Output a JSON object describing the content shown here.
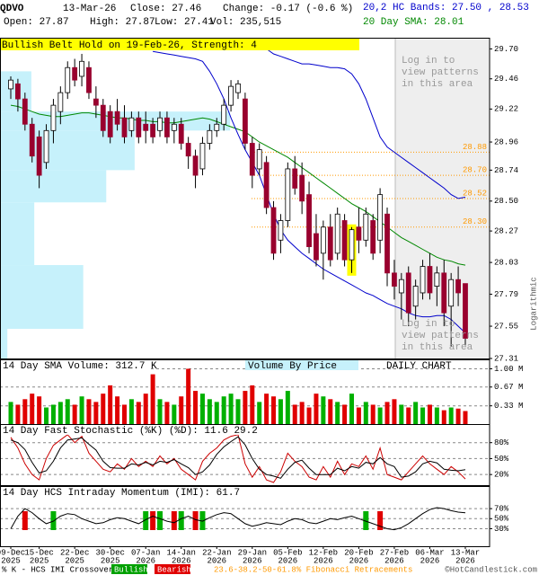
{
  "header": {
    "symbol": "QDVO",
    "date": "13-Mar-26",
    "close": "Close: 27.46",
    "change": "Change: -0.17 (-0.6 %)",
    "open": "Open: 27.87",
    "high": "High: 27.87",
    "low": "Low: 27.41",
    "vol": "Vol: 235,515",
    "bands": "20,2 HC Bands: 27.50 , 28.53",
    "sma": "20 Day SMA: 28.01"
  },
  "notice": [
    "Log in to",
    "view patterns",
    "in this area"
  ],
  "chart_data": [
    {
      "type": "candlestick",
      "annotation": "Bullish Belt Hold on 19-Feb-26, Strength: 4",
      "y_label": "Logarithmic",
      "log_scale": true,
      "ylim": [
        27.31,
        29.79
      ],
      "yticks": [
        {
          "value": 29.7,
          "label": "29.70"
        },
        29.46,
        29.22,
        28.96,
        28.74,
        {
          "value": 28.5,
          "label": "28.50"
        },
        28.27,
        28.03,
        27.79,
        27.55,
        27.31
      ],
      "up_color": "#ffffff",
      "down_color": "#99002e",
      "highlight_color": "#ffff00",
      "highlight_index": 48,
      "ohlc": [
        [
          29.38,
          29.48,
          29.3,
          29.45
        ],
        [
          29.42,
          29.46,
          29.2,
          29.3
        ],
        [
          29.3,
          29.35,
          29.05,
          29.1
        ],
        [
          29.1,
          29.15,
          28.8,
          28.85
        ],
        [
          29.0,
          29.05,
          28.6,
          28.7
        ],
        [
          28.8,
          29.1,
          28.75,
          29.05
        ],
        [
          29.05,
          29.3,
          28.95,
          29.25
        ],
        [
          29.2,
          29.4,
          29.1,
          29.35
        ],
        [
          29.35,
          29.6,
          29.3,
          29.55
        ],
        [
          29.55,
          29.62,
          29.4,
          29.45
        ],
        [
          29.48,
          29.66,
          29.4,
          29.6
        ],
        [
          29.55,
          29.6,
          29.3,
          29.35
        ],
        [
          29.3,
          29.4,
          29.15,
          29.25
        ],
        [
          29.25,
          29.3,
          29.0,
          29.05
        ],
        [
          29.2,
          29.25,
          28.95,
          29.0
        ],
        [
          29.2,
          29.3,
          29.05,
          29.1
        ],
        [
          29.15,
          29.25,
          28.95,
          29.0
        ],
        [
          29.05,
          29.2,
          29.0,
          29.15
        ],
        [
          29.15,
          29.2,
          28.95,
          29.0
        ],
        [
          29.1,
          29.2,
          28.95,
          29.05
        ],
        [
          29.1,
          29.15,
          28.95,
          29.0
        ],
        [
          29.05,
          29.2,
          29.0,
          29.15
        ],
        [
          29.15,
          29.2,
          28.95,
          29.0
        ],
        [
          29.05,
          29.15,
          28.95,
          29.1
        ],
        [
          29.1,
          29.15,
          28.9,
          28.95
        ],
        [
          28.95,
          29.0,
          28.75,
          28.85
        ],
        [
          28.85,
          28.9,
          28.6,
          28.7
        ],
        [
          28.75,
          29.0,
          28.7,
          28.95
        ],
        [
          28.95,
          29.1,
          28.9,
          29.05
        ],
        [
          29.05,
          29.15,
          29.0,
          29.1
        ],
        [
          29.1,
          29.3,
          29.05,
          29.25
        ],
        [
          29.25,
          29.45,
          29.2,
          29.4
        ],
        [
          29.35,
          29.45,
          29.3,
          29.42
        ],
        [
          29.3,
          29.35,
          28.9,
          28.95
        ],
        [
          28.95,
          29.0,
          28.6,
          28.7
        ],
        [
          28.75,
          28.95,
          28.7,
          28.9
        ],
        [
          28.8,
          28.85,
          28.4,
          28.45
        ],
        [
          28.45,
          28.5,
          28.05,
          28.1
        ],
        [
          28.2,
          28.4,
          28.1,
          28.35
        ],
        [
          28.35,
          28.8,
          28.3,
          28.75
        ],
        [
          28.75,
          28.85,
          28.55,
          28.6
        ],
        [
          28.7,
          28.8,
          28.4,
          28.5
        ],
        [
          28.55,
          28.65,
          28.1,
          28.15
        ],
        [
          28.25,
          28.4,
          28.0,
          28.05
        ],
        [
          28.1,
          28.35,
          27.9,
          28.3
        ],
        [
          28.3,
          28.4,
          28.0,
          28.05
        ],
        [
          28.1,
          28.45,
          28.05,
          28.4
        ],
        [
          28.35,
          28.4,
          28.0,
          28.05
        ],
        [
          28.05,
          28.3,
          27.95,
          28.28
        ],
        [
          28.3,
          28.45,
          28.1,
          28.2
        ],
        [
          28.2,
          28.45,
          28.15,
          28.4
        ],
        [
          28.35,
          28.4,
          28.05,
          28.1
        ],
        [
          28.2,
          28.6,
          28.1,
          28.55
        ],
        [
          28.4,
          28.45,
          27.85,
          27.95
        ],
        [
          27.95,
          28.05,
          27.75,
          27.85
        ],
        [
          27.8,
          27.95,
          27.6,
          27.9
        ],
        [
          27.95,
          28.0,
          27.55,
          27.65
        ],
        [
          27.7,
          27.9,
          27.6,
          27.85
        ],
        [
          27.8,
          28.05,
          27.75,
          28.0
        ],
        [
          28.0,
          28.1,
          27.75,
          27.8
        ],
        [
          27.85,
          28.0,
          27.7,
          27.95
        ],
        [
          27.95,
          28.05,
          27.55,
          27.65
        ],
        [
          27.7,
          27.95,
          27.4,
          27.9
        ],
        [
          27.9,
          28.0,
          27.7,
          27.8
        ],
        [
          27.87,
          27.87,
          27.41,
          27.46
        ]
      ],
      "series": [
        {
          "name": "20 Day SMA",
          "color": "#008800",
          "values": [
            29.25,
            29.24,
            29.22,
            29.2,
            29.18,
            29.17,
            29.16,
            29.16,
            29.17,
            29.18,
            29.19,
            29.19,
            29.18,
            29.17,
            29.16,
            29.15,
            29.15,
            29.14,
            29.13,
            29.13,
            29.12,
            29.12,
            29.11,
            29.11,
            29.12,
            29.13,
            29.14,
            29.15,
            29.14,
            29.12,
            29.1,
            29.08,
            29.06,
            29.04,
            29.0,
            28.96,
            28.93,
            28.9,
            28.87,
            28.84,
            28.8,
            28.76,
            28.72,
            28.68,
            28.64,
            28.6,
            28.56,
            28.52,
            28.48,
            28.45,
            28.42,
            28.38,
            28.34,
            28.3,
            28.26,
            28.22,
            28.19,
            28.16,
            28.13,
            28.1,
            28.07,
            28.05,
            28.04,
            28.02,
            28.01
          ]
        },
        {
          "name": "Upper Band",
          "color": "#0000cc",
          "values": [
            null,
            null,
            null,
            null,
            null,
            null,
            null,
            null,
            null,
            null,
            null,
            null,
            null,
            null,
            null,
            null,
            null,
            null,
            null,
            null,
            null,
            null,
            null,
            null,
            null,
            null,
            null,
            null,
            null,
            null,
            null,
            null,
            null,
            null,
            null,
            null,
            29.7,
            29.66,
            29.64,
            29.62,
            29.6,
            29.58,
            29.58,
            29.57,
            29.56,
            29.55,
            29.55,
            29.54,
            29.5,
            29.42,
            29.3,
            29.15,
            29.0,
            28.92,
            28.88,
            28.84,
            28.8,
            28.76,
            28.72,
            28.68,
            28.64,
            28.6,
            28.55,
            28.52,
            28.53
          ]
        },
        {
          "name": "Lower Band",
          "color": "#0000cc",
          "values": [
            null,
            null,
            null,
            null,
            null,
            null,
            null,
            null,
            null,
            null,
            null,
            null,
            null,
            null,
            null,
            null,
            null,
            null,
            null,
            null,
            29.68,
            29.67,
            29.66,
            29.65,
            29.64,
            29.63,
            29.62,
            29.6,
            29.52,
            29.42,
            29.3,
            29.15,
            29.02,
            28.9,
            28.8,
            28.7,
            28.55,
            28.4,
            28.28,
            28.2,
            28.15,
            28.1,
            28.06,
            28.02,
            27.98,
            27.95,
            27.92,
            27.89,
            27.86,
            27.83,
            27.8,
            27.78,
            27.75,
            27.72,
            27.7,
            27.68,
            27.65,
            27.63,
            27.62,
            27.62,
            27.63,
            27.63,
            27.6,
            27.55,
            27.5
          ]
        }
      ],
      "fib_color": "#ff9900",
      "fib_levels": [
        28.88,
        {
          "value": 28.7,
          "label": "28.70"
        },
        28.52,
        {
          "value": 28.3,
          "label": "28.30"
        }
      ],
      "volume_by_price": {
        "color": "#c6f1fb",
        "bins": [
          27.31,
          27.53,
          28.01,
          28.49,
          28.74,
          29.05,
          29.2,
          29.52
        ],
        "values": [
          1.5,
          17,
          7,
          21.7,
          27.5,
          47,
          6.4
        ]
      }
    },
    {
      "type": "bar",
      "title": "14 Day SMA Volume: 312.7 K",
      "label_center": "Volume By Price",
      "label_right": "DAILY CHART",
      "ylim": [
        0,
        1.17
      ],
      "grid": true,
      "yticks": [
        {
          "value": 1.0,
          "label": "1.00 M"
        },
        {
          "value": 0.67,
          "label": "0.67 M"
        },
        {
          "value": 0.33,
          "label": "0.33 M"
        }
      ],
      "up_color": "#00b000",
      "down_color": "#e00000",
      "values": [
        0.4,
        0.35,
        0.45,
        0.55,
        0.5,
        0.3,
        0.35,
        0.4,
        0.45,
        0.35,
        0.5,
        0.45,
        0.4,
        0.55,
        0.7,
        0.5,
        0.35,
        0.45,
        0.4,
        0.55,
        0.9,
        0.45,
        0.4,
        0.35,
        0.5,
        1.0,
        0.6,
        0.55,
        0.45,
        0.4,
        0.5,
        0.55,
        0.45,
        0.6,
        0.7,
        0.4,
        0.55,
        0.5,
        0.45,
        0.6,
        0.35,
        0.4,
        0.3,
        0.55,
        0.5,
        0.45,
        0.4,
        0.35,
        0.55,
        0.3,
        0.4,
        0.35,
        0.3,
        0.4,
        0.45,
        0.35,
        0.3,
        0.4,
        0.3,
        0.35,
        0.3,
        0.25,
        0.3,
        0.28,
        0.235515
      ]
    },
    {
      "type": "line",
      "title": "14 Day Fast Stochastic (%K) (%D): 11.6  29.2",
      "ylim": [
        0,
        115
      ],
      "grid": true,
      "yticks": [
        {
          "value": 80,
          "label": "80%"
        },
        {
          "value": 50,
          "label": "50%"
        },
        {
          "value": 20,
          "label": "20%"
        }
      ],
      "series": [
        {
          "name": "%K",
          "color": "#cc0000",
          "values": [
            90,
            70,
            40,
            20,
            10,
            50,
            75,
            85,
            95,
            80,
            92,
            60,
            45,
            30,
            25,
            40,
            30,
            50,
            35,
            45,
            35,
            55,
            40,
            50,
            30,
            20,
            10,
            45,
            60,
            70,
            85,
            92,
            95,
            40,
            15,
            35,
            10,
            5,
            25,
            60,
            45,
            35,
            15,
            10,
            35,
            15,
            45,
            20,
            40,
            35,
            55,
            30,
            70,
            20,
            15,
            10,
            25,
            40,
            55,
            40,
            30,
            20,
            35,
            25,
            11.6
          ]
        },
        {
          "name": "%D",
          "color": "#000000",
          "values": [
            85,
            80,
            67,
            43,
            23,
            27,
            45,
            70,
            85,
            87,
            89,
            77,
            66,
            45,
            33,
            32,
            32,
            40,
            38,
            43,
            38,
            45,
            43,
            48,
            40,
            33,
            20,
            25,
            38,
            58,
            72,
            82,
            91,
            76,
            50,
            30,
            20,
            17,
            13,
            30,
            43,
            47,
            32,
            20,
            20,
            20,
            32,
            27,
            35,
            32,
            43,
            40,
            52,
            40,
            35,
            15,
            17,
            25,
            40,
            45,
            42,
            30,
            28,
            27,
            29.2
          ]
        }
      ]
    },
    {
      "type": "line",
      "title": "14 Day HCS Intraday Momentum (IMI): 61.7",
      "ylim": [
        -5,
        115
      ],
      "grid": true,
      "yticks": [
        {
          "value": 70,
          "label": "70%"
        },
        {
          "value": 50,
          "label": "50%"
        },
        {
          "value": 30,
          "label": "30%"
        }
      ],
      "series": [
        {
          "name": "IMI",
          "color": "#000000",
          "values": [
            30,
            55,
            70,
            62,
            50,
            40,
            45,
            55,
            60,
            58,
            50,
            45,
            40,
            42,
            48,
            52,
            50,
            45,
            40,
            48,
            55,
            50,
            45,
            42,
            50,
            55,
            48,
            45,
            52,
            58,
            62,
            60,
            50,
            40,
            35,
            38,
            42,
            40,
            38,
            45,
            50,
            48,
            42,
            40,
            45,
            50,
            48,
            52,
            55,
            50,
            45,
            40,
            35,
            30,
            28,
            32,
            40,
            50,
            60,
            68,
            72,
            70,
            66,
            63,
            61.7
          ]
        }
      ],
      "bullish_color": "#00b000",
      "bearish_color": "#e00000",
      "bullish_crossovers": [
        6,
        19,
        21,
        24,
        27,
        50
      ],
      "bearish_crossovers": [
        2,
        20,
        23,
        26,
        52
      ]
    }
  ],
  "x_labels": [
    [
      "09-Dec",
      "2025"
    ],
    [
      "15-Dec",
      "2025"
    ],
    [
      "22-Dec",
      "2025"
    ],
    [
      "30-Dec",
      "2025"
    ],
    [
      "07-Jan",
      "2026"
    ],
    [
      "14-Jan",
      "2026"
    ],
    [
      "22-Jan",
      "2026"
    ],
    [
      "29-Jan",
      "2026"
    ],
    [
      "05-Feb",
      "2026"
    ],
    [
      "12-Feb",
      "2026"
    ],
    [
      "20-Feb",
      "2026"
    ],
    [
      "27-Feb",
      "2026"
    ],
    [
      "06-Mar",
      "2026"
    ],
    [
      "13-Mar",
      "2026"
    ]
  ],
  "footer": {
    "legend": "% K - HCS IMI Crossover:",
    "bullish": "Bullish",
    "bearish": "Bearish",
    "fib": "23.6-38.2-50-61.8% Fibonacci Retracements",
    "copyright": "©HotCandlestick.com"
  }
}
